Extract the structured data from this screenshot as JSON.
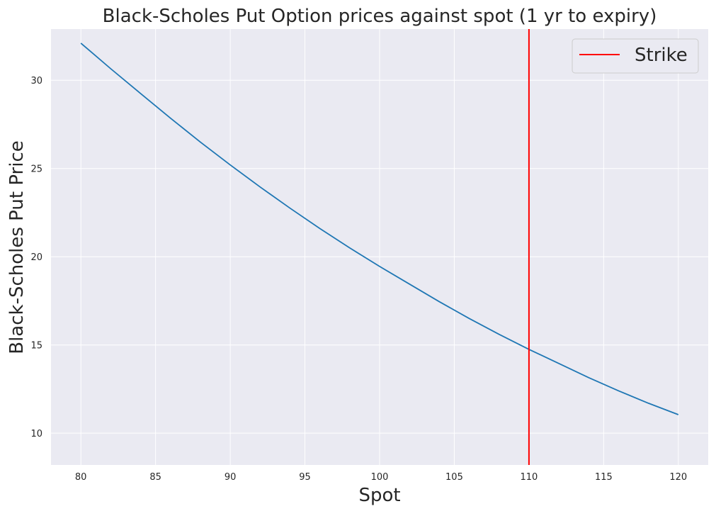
{
  "chart_data": {
    "type": "line",
    "title": "Black-Scholes Put Option prices against spot (1 yr to expiry)",
    "xlabel": "Spot",
    "ylabel": "Black-Scholes Put Price",
    "xlim": [
      78,
      122
    ],
    "ylim": [
      8.2,
      32.9
    ],
    "xticks": [
      80,
      85,
      90,
      95,
      100,
      105,
      110,
      115,
      120
    ],
    "yticks": [
      10,
      15,
      20,
      25,
      30
    ],
    "grid": true,
    "legend_position": "top-right",
    "colors": {
      "background": "#eaeaf2",
      "grid": "#ffffff",
      "series": "#1f77b4",
      "strike": "#ff0000"
    },
    "series": [
      {
        "x": [
          80,
          82,
          84,
          86,
          88,
          90,
          92,
          94,
          96,
          98,
          100,
          102,
          104,
          106,
          108,
          110,
          112,
          114,
          116,
          118,
          120
        ],
        "y": [
          32.1,
          30.65,
          29.25,
          27.85,
          26.5,
          25.2,
          23.95,
          22.75,
          21.6,
          20.5,
          19.45,
          18.45,
          17.45,
          16.5,
          15.6,
          14.75,
          13.95,
          13.15,
          12.4,
          11.7,
          11.05
        ]
      }
    ],
    "vlines": [
      {
        "name": "Strike",
        "x": 110
      }
    ]
  }
}
